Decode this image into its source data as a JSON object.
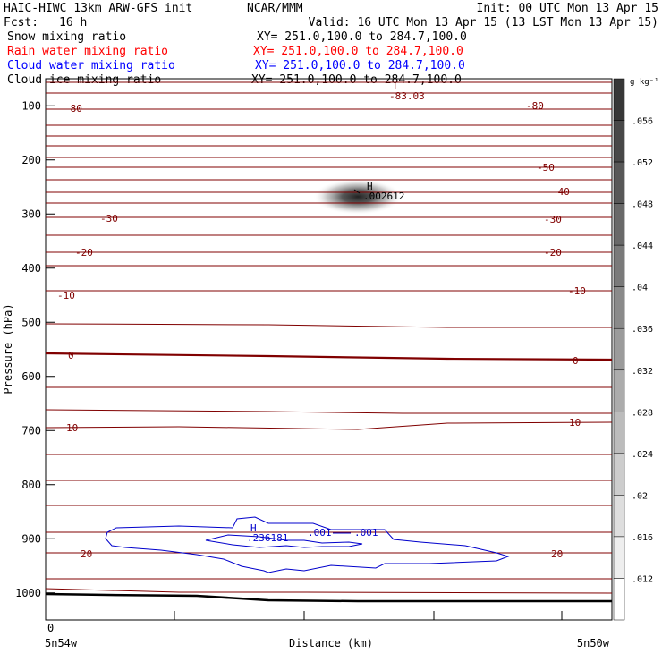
{
  "header": {
    "title_left": "HAIC-HIWC 13km ARW-GFS init",
    "org": "NCAR/MMM",
    "init": "Init: 00 UTC Mon 13 Apr 15",
    "fcst_label": "Fcst:",
    "fcst_value": "16 h",
    "valid": "Valid: 16 UTC Mon 13 Apr 15 (13 LST Mon 13 Apr 15)",
    "fields": [
      {
        "name": "Snow mixing ratio",
        "xy": "XY= 251.0,100.0 to 284.7,100.0",
        "color": "#000000"
      },
      {
        "name": "Rain water mixing ratio",
        "xy": "XY= 251.0,100.0 to 284.7,100.0",
        "color": "#ff0000"
      },
      {
        "name": "Cloud water mixing ratio",
        "xy": "XY= 251.0,100.0 to 284.7,100.0",
        "color": "#0000ff"
      },
      {
        "name": "Cloud ice mixing ratio",
        "xy": "XY= 251.0,100.0 to 284.7,100.0",
        "color": "#000000"
      }
    ]
  },
  "colorbar": {
    "unit": "g kg⁻¹",
    "ticks": [
      ".056",
      ".052",
      ".048",
      ".044",
      ".04",
      ".036",
      ".032",
      ".028",
      ".024",
      ".02",
      ".016",
      ".012"
    ]
  },
  "colors": {
    "temperature_contour": "#800000",
    "cloud_water_contour": "#0000cc",
    "terrain": "#000000"
  },
  "chart_data": {
    "type": "cross-section",
    "xlabel": "Distance (km)",
    "ylabel": "Pressure (hPa)",
    "x_start_label": "0",
    "x_left_label": "5n54w",
    "x_right_label": "5n50w",
    "y_ticks": [
      100,
      200,
      300,
      400,
      500,
      600,
      700,
      800,
      900,
      1000
    ],
    "y_range": [
      50,
      1050
    ],
    "temperature_labels": [
      {
        "text": "-80",
        "p": 102
      },
      {
        "text": "-80",
        "p": 99
      },
      {
        "text": "-83.03",
        "p": 82
      },
      {
        "text": "-50",
        "p": 213
      },
      {
        "text": "-40",
        "p": 255
      },
      {
        "text": "-30",
        "p": 304
      },
      {
        "text": "-30",
        "p": 305
      },
      {
        "text": "-20",
        "p": 362
      },
      {
        "text": "-20",
        "p": 363
      },
      {
        "text": "-10",
        "p": 425
      },
      {
        "text": "-10",
        "p": 433
      },
      {
        "text": "0",
        "p": 560
      },
      {
        "text": "0",
        "p": 568
      },
      {
        "text": "10",
        "p": 693
      },
      {
        "text": "10",
        "p": 682
      },
      {
        "text": "20",
        "p": 926
      },
      {
        "text": "20",
        "p": 927
      }
    ],
    "extrema": [
      {
        "marker": "L",
        "value": "-83.03"
      },
      {
        "marker": "H",
        "value": ".002612"
      },
      {
        "marker": "H",
        "value": ".236181"
      }
    ],
    "cloud_water_contour_labels": [
      ".001",
      ".001"
    ],
    "snow_max_value": 0.002612,
    "cloud_water_max_value": 0.236181
  }
}
